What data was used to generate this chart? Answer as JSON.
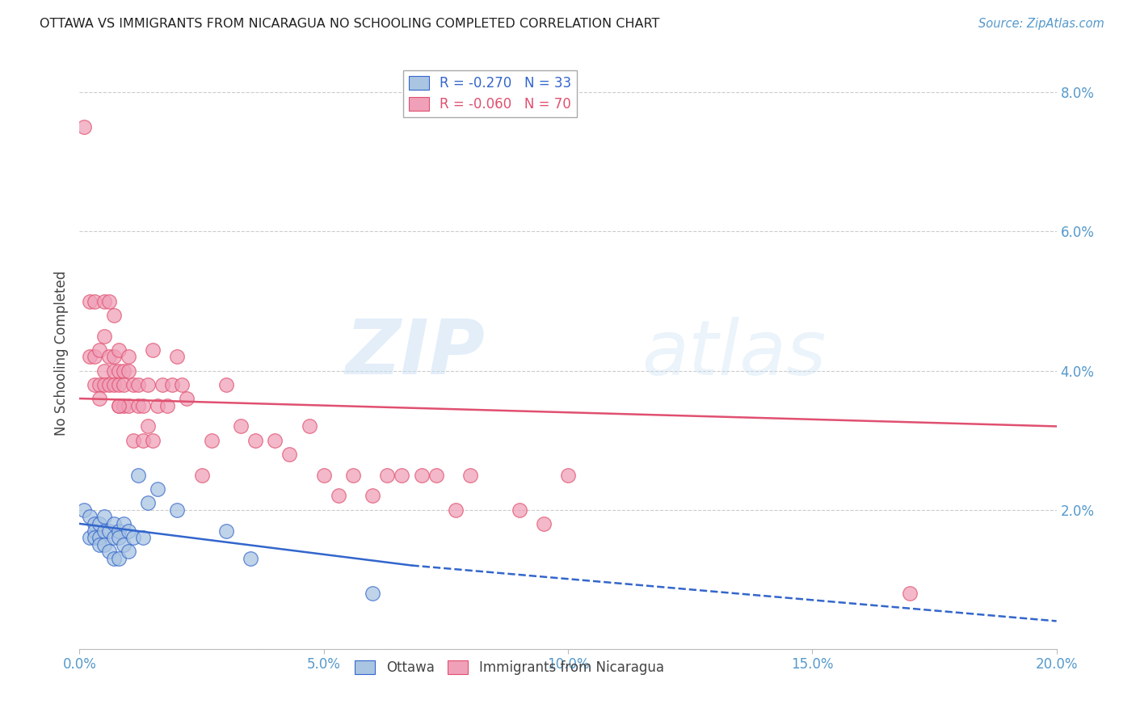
{
  "title": "OTTAWA VS IMMIGRANTS FROM NICARAGUA NO SCHOOLING COMPLETED CORRELATION CHART",
  "source": "Source: ZipAtlas.com",
  "ylabel": "No Schooling Completed",
  "xlim": [
    0.0,
    0.2
  ],
  "ylim": [
    0.0,
    0.085
  ],
  "yticks": [
    0.0,
    0.02,
    0.04,
    0.06,
    0.08
  ],
  "ytick_labels": [
    "",
    "2.0%",
    "4.0%",
    "6.0%",
    "8.0%"
  ],
  "xticks": [
    0.0,
    0.05,
    0.1,
    0.15,
    0.2
  ],
  "xtick_labels": [
    "0.0%",
    "5.0%",
    "10.0%",
    "15.0%",
    "20.0%"
  ],
  "legend_R_label1": "R = -0.270   N = 33",
  "legend_R_label2": "R = -0.060   N = 70",
  "ottawa_color": "#aac5e2",
  "nicaragua_color": "#f0a0b8",
  "trendline_ottawa_color": "#3366cc",
  "trendline_nicaragua_color": "#e05070",
  "watermark_zip": "ZIP",
  "watermark_atlas": "atlas",
  "background_color": "#ffffff",
  "grid_color": "#cccccc",
  "axis_color": "#bbbbbb",
  "tick_label_color": "#5599cc",
  "title_color": "#222222",
  "source_color": "#5599cc",
  "ottawa_x": [
    0.001,
    0.002,
    0.002,
    0.003,
    0.003,
    0.003,
    0.004,
    0.004,
    0.004,
    0.005,
    0.005,
    0.005,
    0.006,
    0.006,
    0.007,
    0.007,
    0.007,
    0.008,
    0.008,
    0.008,
    0.009,
    0.009,
    0.01,
    0.01,
    0.011,
    0.012,
    0.013,
    0.014,
    0.016,
    0.02,
    0.03,
    0.035,
    0.06
  ],
  "ottawa_y": [
    0.02,
    0.019,
    0.016,
    0.018,
    0.017,
    0.016,
    0.018,
    0.016,
    0.015,
    0.019,
    0.017,
    0.015,
    0.017,
    0.014,
    0.018,
    0.016,
    0.013,
    0.017,
    0.016,
    0.013,
    0.018,
    0.015,
    0.017,
    0.014,
    0.016,
    0.025,
    0.016,
    0.021,
    0.023,
    0.02,
    0.017,
    0.013,
    0.008
  ],
  "nicaragua_x": [
    0.001,
    0.002,
    0.002,
    0.003,
    0.003,
    0.003,
    0.004,
    0.004,
    0.004,
    0.005,
    0.005,
    0.005,
    0.005,
    0.006,
    0.006,
    0.006,
    0.007,
    0.007,
    0.007,
    0.007,
    0.008,
    0.008,
    0.008,
    0.008,
    0.009,
    0.009,
    0.009,
    0.01,
    0.01,
    0.01,
    0.011,
    0.011,
    0.012,
    0.012,
    0.013,
    0.013,
    0.014,
    0.014,
    0.015,
    0.015,
    0.016,
    0.017,
    0.018,
    0.019,
    0.02,
    0.021,
    0.022,
    0.025,
    0.027,
    0.03,
    0.033,
    0.036,
    0.04,
    0.043,
    0.047,
    0.05,
    0.053,
    0.056,
    0.06,
    0.063,
    0.066,
    0.07,
    0.073,
    0.077,
    0.08,
    0.09,
    0.095,
    0.1,
    0.17,
    0.008
  ],
  "nicaragua_y": [
    0.075,
    0.05,
    0.042,
    0.05,
    0.042,
    0.038,
    0.043,
    0.038,
    0.036,
    0.05,
    0.045,
    0.04,
    0.038,
    0.05,
    0.042,
    0.038,
    0.048,
    0.042,
    0.04,
    0.038,
    0.043,
    0.04,
    0.038,
    0.035,
    0.04,
    0.038,
    0.035,
    0.042,
    0.04,
    0.035,
    0.038,
    0.03,
    0.038,
    0.035,
    0.035,
    0.03,
    0.038,
    0.032,
    0.043,
    0.03,
    0.035,
    0.038,
    0.035,
    0.038,
    0.042,
    0.038,
    0.036,
    0.025,
    0.03,
    0.038,
    0.032,
    0.03,
    0.03,
    0.028,
    0.032,
    0.025,
    0.022,
    0.025,
    0.022,
    0.025,
    0.025,
    0.025,
    0.025,
    0.02,
    0.025,
    0.02,
    0.018,
    0.025,
    0.008,
    0.035
  ],
  "ottawa_trend_x0": 0.0,
  "ottawa_trend_x1": 0.068,
  "ottawa_trend_y0": 0.018,
  "ottawa_trend_y1": 0.012,
  "ottawa_trend_dash_x1": 0.2,
  "ottawa_trend_dash_y1": 0.004,
  "nicaragua_trend_x0": 0.0,
  "nicaragua_trend_x1": 0.2,
  "nicaragua_trend_y0": 0.036,
  "nicaragua_trend_y1": 0.032
}
